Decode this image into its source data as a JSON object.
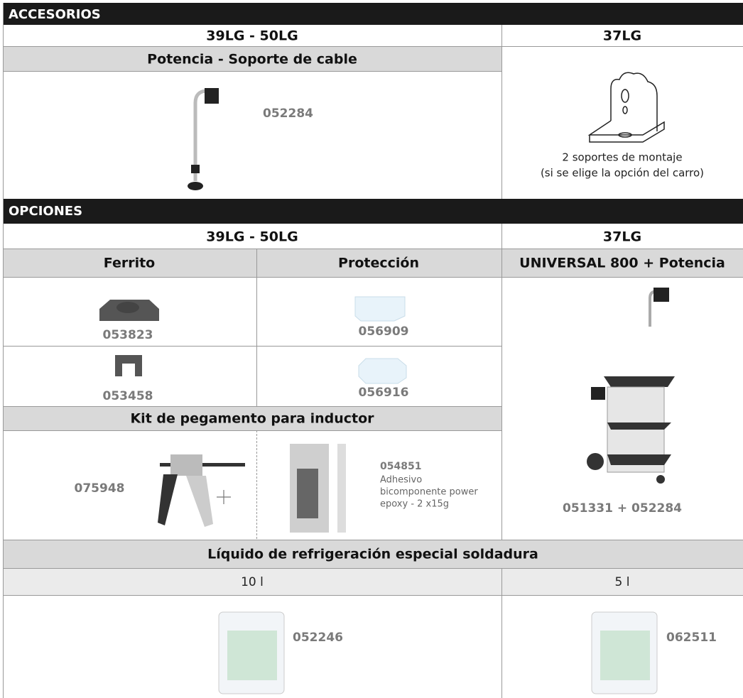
{
  "accesorios": {
    "title": "ACCESORIOS",
    "col1": "39LG - 50LG",
    "col2": "37LG",
    "subheader": "Potencia - Soporte de cable",
    "item_code": "052284",
    "right_caption": [
      "2 soportes de montaje",
      "(si se elige la opción del carro)"
    ]
  },
  "opciones": {
    "title": "OPCIONES",
    "col1": "39LG - 50LG",
    "col2": "37LG",
    "headers": [
      "Ferrito",
      "Protección",
      "UNIVERSAL 800 + Potencia"
    ],
    "ferrito": [
      "053823",
      "053458"
    ],
    "proteccion": [
      "056909",
      "056916"
    ],
    "kit": {
      "title": "Kit de pegamento para inductor",
      "gun_code": "075948",
      "cartridge_code": "054851",
      "cartridge_desc": [
        "Adhesivo",
        "bicomponente power",
        "epoxy - 2 x15g"
      ]
    },
    "cart_code": "051331 + 052284"
  },
  "liquido": {
    "title": "Líquido de refrigeración especial soldadura",
    "sizes": [
      "10 l",
      "5 l"
    ],
    "codes": [
      "052246",
      "062511"
    ]
  }
}
